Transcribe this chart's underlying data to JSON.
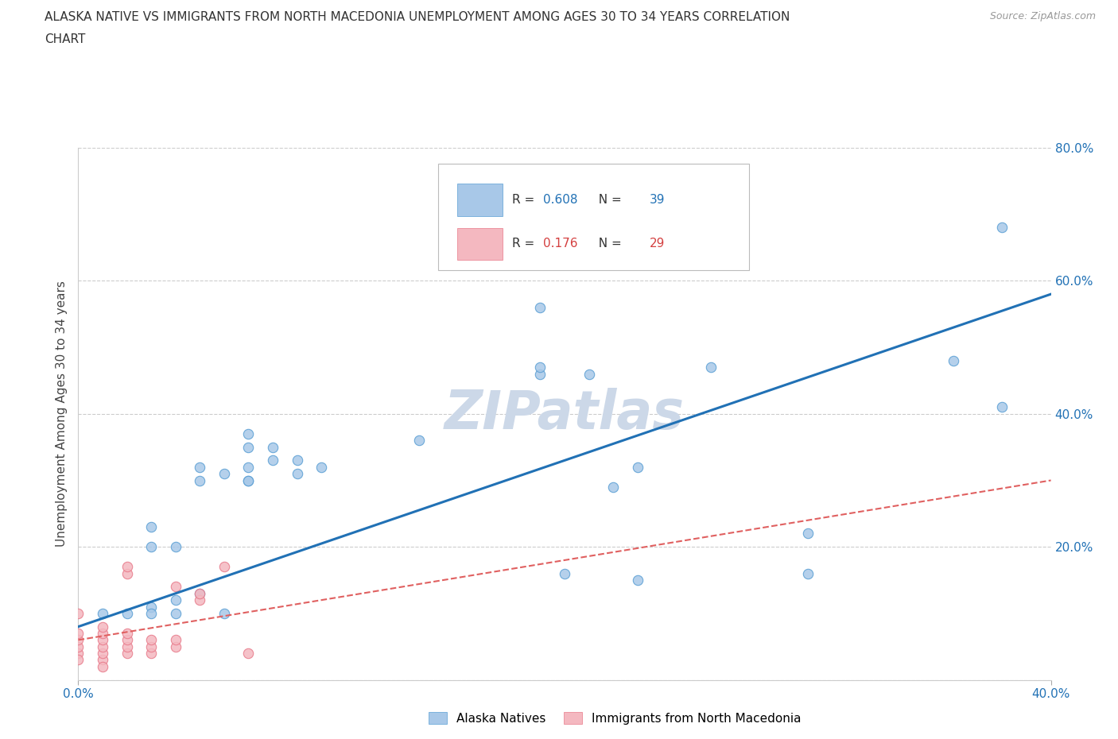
{
  "title_line1": "ALASKA NATIVE VS IMMIGRANTS FROM NORTH MACEDONIA UNEMPLOYMENT AMONG AGES 30 TO 34 YEARS CORRELATION",
  "title_line2": "CHART",
  "source": "Source: ZipAtlas.com",
  "ylabel": "Unemployment Among Ages 30 to 34 years",
  "xlim": [
    0.0,
    0.4
  ],
  "ylim": [
    0.0,
    0.8
  ],
  "xtick_positions": [
    0.0,
    0.4
  ],
  "xtick_labels": [
    "0.0%",
    "40.0%"
  ],
  "ytick_positions": [
    0.0,
    0.2,
    0.4,
    0.6,
    0.8
  ],
  "ytick_labels": [
    "",
    "20.0%",
    "40.0%",
    "60.0%",
    "80.0%"
  ],
  "grid_color": "#cccccc",
  "background_color": "#ffffff",
  "alaska_color": "#a8c8e8",
  "alaska_edge_color": "#5a9fd4",
  "immig_color": "#f4b8c0",
  "immig_edge_color": "#e87a8a",
  "alaska_R": 0.608,
  "alaska_N": 39,
  "immig_R": 0.176,
  "immig_N": 29,
  "legend_R_color": "#2171b5",
  "legend_immig_R_color": "#d44040",
  "alaska_scatter_x": [
    0.07,
    0.14,
    0.05,
    0.07,
    0.05,
    0.09,
    0.1,
    0.09,
    0.07,
    0.08,
    0.06,
    0.07,
    0.07,
    0.08,
    0.03,
    0.03,
    0.04,
    0.19,
    0.21,
    0.26,
    0.19,
    0.19,
    0.2,
    0.23,
    0.3,
    0.36,
    0.38,
    0.22,
    0.38,
    0.01,
    0.02,
    0.03,
    0.03,
    0.04,
    0.04,
    0.05,
    0.06,
    0.23,
    0.3
  ],
  "alaska_scatter_y": [
    0.35,
    0.36,
    0.32,
    0.37,
    0.3,
    0.33,
    0.32,
    0.31,
    0.3,
    0.35,
    0.31,
    0.3,
    0.32,
    0.33,
    0.23,
    0.2,
    0.2,
    0.56,
    0.46,
    0.47,
    0.46,
    0.47,
    0.16,
    0.32,
    0.16,
    0.48,
    0.41,
    0.29,
    0.68,
    0.1,
    0.1,
    0.11,
    0.1,
    0.12,
    0.1,
    0.13,
    0.1,
    0.15,
    0.22
  ],
  "immig_scatter_x": [
    0.0,
    0.0,
    0.0,
    0.0,
    0.01,
    0.01,
    0.01,
    0.01,
    0.01,
    0.02,
    0.02,
    0.02,
    0.02,
    0.02,
    0.03,
    0.03,
    0.03,
    0.04,
    0.04,
    0.05,
    0.05,
    0.06,
    0.07,
    0.04,
    0.02,
    0.0,
    0.01,
    0.0,
    0.01
  ],
  "immig_scatter_y": [
    0.04,
    0.05,
    0.06,
    0.07,
    0.03,
    0.04,
    0.05,
    0.06,
    0.07,
    0.04,
    0.05,
    0.06,
    0.07,
    0.16,
    0.04,
    0.05,
    0.06,
    0.05,
    0.06,
    0.12,
    0.13,
    0.17,
    0.04,
    0.14,
    0.17,
    0.1,
    0.08,
    0.03,
    0.02
  ],
  "alaska_trendline_x": [
    0.0,
    0.4
  ],
  "alaska_trendline_y": [
    0.08,
    0.58
  ],
  "immig_trendline_x": [
    0.0,
    0.4
  ],
  "immig_trendline_y": [
    0.06,
    0.3
  ],
  "marker_size": 80,
  "trendline_color_alaska": "#2171b5",
  "trendline_color_immig": "#e06060",
  "watermark": "ZIPatlas",
  "watermark_color": "#ccd8e8",
  "watermark_fontsize": 48
}
